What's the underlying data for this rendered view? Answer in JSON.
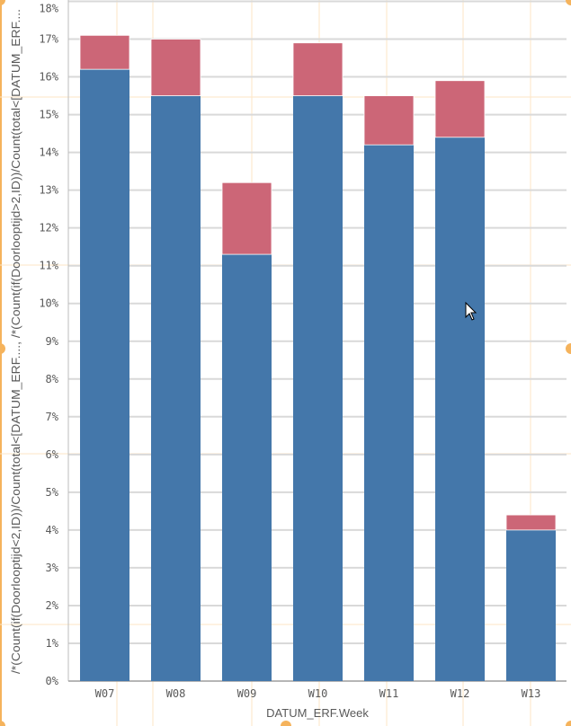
{
  "chart_data": {
    "type": "bar",
    "stacked": true,
    "categories": [
      "W07",
      "W08",
      "W09",
      "W10",
      "W11",
      "W12",
      "W13"
    ],
    "series": [
      {
        "name": "/*(Count(if(Doorlooptijd<2,ID))/Count(total<[DATUM_ERF....",
        "color": "#4477aa",
        "values": [
          16.2,
          15.5,
          11.3,
          15.5,
          14.2,
          14.4,
          4.0
        ]
      },
      {
        "name": "/*(Count(if(Doorlooptijd>2,ID))/Count(total<[DATUM_ERF....",
        "color": "#cc6677",
        "values": [
          0.9,
          1.5,
          1.9,
          1.4,
          1.3,
          1.5,
          0.4
        ]
      }
    ],
    "xlabel": "DATUM_ERF.Week",
    "ylabel": "/*(Count(if(Doorlooptijd<2,ID))/Count(total<[DATUM_ERF...., /*(Count(if(Doorlooptijd>2,ID))/Count(total<[DATUM_ERF....",
    "ylim": [
      0,
      18
    ],
    "yticks": [
      "0%",
      "1%",
      "2%",
      "3%",
      "4%",
      "5%",
      "6%",
      "7%",
      "8%",
      "9%",
      "10%",
      "11%",
      "12%",
      "13%",
      "14%",
      "15%",
      "16%",
      "17%",
      "18%"
    ],
    "grid": true
  }
}
